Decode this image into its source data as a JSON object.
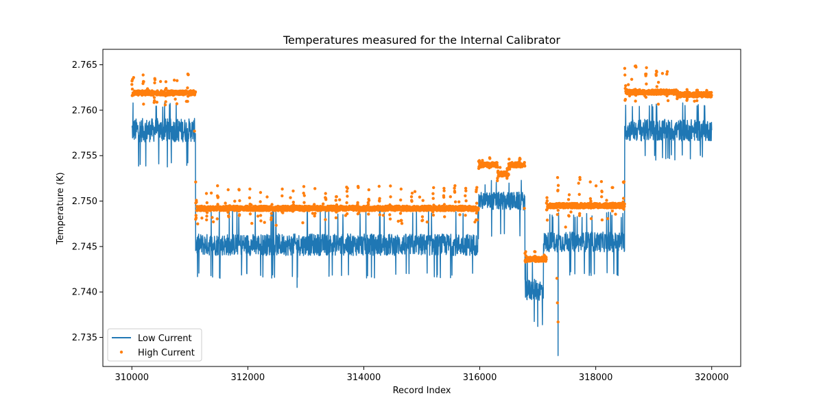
{
  "chart_data": {
    "type": "line",
    "title": "Temperatures measured for the Internal Calibrator",
    "xlabel": "Record Index",
    "ylabel": "Temperature (K)",
    "xlim": [
      309500,
      320500
    ],
    "ylim": [
      2.7318,
      2.7667
    ],
    "xticks": [
      310000,
      312000,
      314000,
      316000,
      318000,
      320000
    ],
    "yticks": [
      2.735,
      2.74,
      2.745,
      2.75,
      2.755,
      2.76,
      2.765
    ],
    "ytick_labels": [
      "2.735",
      "2.740",
      "2.745",
      "2.750",
      "2.755",
      "2.760",
      "2.765"
    ],
    "xtick_labels": [
      "310000",
      "312000",
      "314000",
      "316000",
      "318000",
      "320000"
    ],
    "grid": false,
    "legend_position": "lower-left",
    "series": [
      {
        "name": "Low Current",
        "style": "line",
        "color": "#1f77b4",
        "segments": [
          {
            "x_start": 310000,
            "x_end": 311100,
            "mean": 2.7578,
            "noise": 0.0013,
            "spike_down": 2.754,
            "spike_up": 2.7605
          },
          {
            "x_start": 311100,
            "x_end": 315980,
            "mean": 2.7452,
            "noise": 0.0012,
            "spike_down": 2.7418,
            "spike_up": 2.7488
          },
          {
            "x_start": 315980,
            "x_end": 316780,
            "mean": 2.75,
            "noise": 0.001,
            "spike_down": 2.7463,
            "spike_up": 2.752
          },
          {
            "x_start": 316780,
            "x_end": 317100,
            "mean": 2.7402,
            "noise": 0.0012,
            "spike_down": 2.7365,
            "spike_up": 2.7435
          },
          {
            "x_start": 317100,
            "x_end": 318500,
            "mean": 2.7455,
            "noise": 0.0011,
            "spike_down": 2.742,
            "spike_up": 2.7485
          },
          {
            "x_start": 318500,
            "x_end": 320000,
            "mean": 2.7578,
            "noise": 0.0012,
            "spike_down": 2.7548,
            "spike_up": 2.7605
          }
        ],
        "notable_points": [
          {
            "x": 310020,
            "y": 2.7608
          },
          {
            "x": 312850,
            "y": 2.7405
          },
          {
            "x": 317350,
            "y": 2.733
          },
          {
            "x": 317000,
            "y": 2.7362
          }
        ]
      },
      {
        "name": "High Current",
        "style": "markers",
        "color": "#ff7f0e",
        "segments": [
          {
            "x_start": 310000,
            "x_end": 311100,
            "baseline": 2.7619,
            "upper": 2.7642,
            "lower": 2.7604
          },
          {
            "x_start": 311100,
            "x_end": 315980,
            "baseline": 2.7492,
            "upper": 2.7517,
            "lower": 2.7478
          },
          {
            "x_start": 315980,
            "x_end": 316300,
            "baseline": 2.754,
            "upper": 2.7548,
            "lower": 2.7535
          },
          {
            "x_start": 316300,
            "x_end": 316500,
            "baseline": 2.753,
            "upper": 2.754,
            "lower": 2.7522
          },
          {
            "x_start": 316500,
            "x_end": 316780,
            "baseline": 2.754,
            "upper": 2.7548,
            "lower": 2.7535
          },
          {
            "x_start": 316780,
            "x_end": 317150,
            "baseline": 2.7436,
            "upper": 2.7445,
            "lower": 2.7432
          },
          {
            "x_start": 317150,
            "x_end": 318500,
            "baseline": 2.7495,
            "upper": 2.7528,
            "lower": 2.7478
          },
          {
            "x_start": 318500,
            "x_end": 319400,
            "baseline": 2.762,
            "upper": 2.765,
            "lower": 2.7604
          },
          {
            "x_start": 319400,
            "x_end": 320000,
            "baseline": 2.7617,
            "upper": 2.7625,
            "lower": 2.761
          }
        ],
        "notable_points": [
          {
            "x": 317350,
            "y": 2.7367
          },
          {
            "x": 317340,
            "y": 2.7388
          },
          {
            "x": 317330,
            "y": 2.7415
          },
          {
            "x": 311080,
            "y": 2.7577
          },
          {
            "x": 311100,
            "y": 2.7521
          },
          {
            "x": 316770,
            "y": 2.7492
          }
        ]
      }
    ]
  }
}
